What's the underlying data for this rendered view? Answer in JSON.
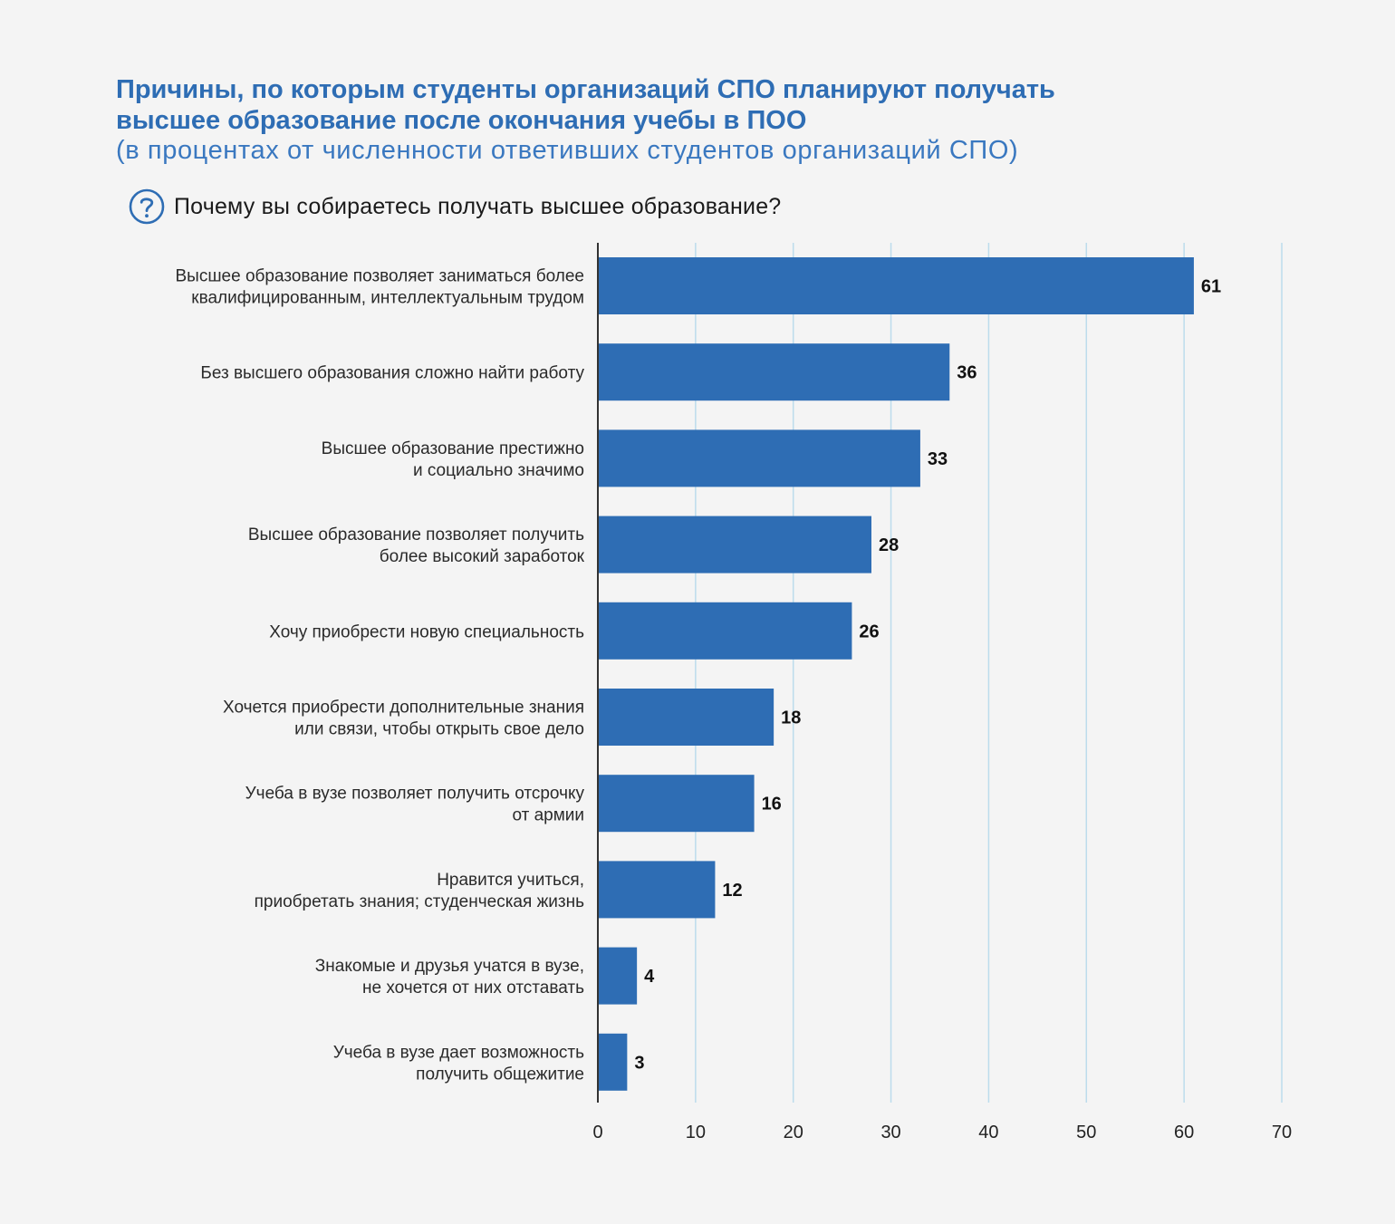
{
  "title_line1": "Причины, по которым студенты организаций СПО планируют получать",
  "title_line2": "высшее образование после окончания учебы в ПОО",
  "subtitle": "(в процентах от численности ответивших студентов организаций СПО)",
  "question": {
    "icon": "question-circle-icon",
    "text": "Почему вы собираетесь получать высшее образование?"
  },
  "colors": {
    "bar": "#2e6db4",
    "title": "#2e6db4",
    "grid": "#bcdcec",
    "axis": "#333333"
  },
  "chart_data": {
    "type": "bar",
    "orientation": "horizontal",
    "categories": [
      [
        "Высшее образование позволяет заниматься более",
        "квалифицированным, интеллектуальным трудом"
      ],
      [
        "Без высшего образования сложно найти работу"
      ],
      [
        "Высшее образование престижно",
        "и социально значимо"
      ],
      [
        "Высшее образование позволяет получить",
        "более высокий заработок"
      ],
      [
        "Хочу приобрести новую специальность"
      ],
      [
        "Хочется приобрести дополнительные знания",
        "или связи, чтобы открыть свое дело"
      ],
      [
        "Учеба в вузе позволяет получить отсрочку",
        "от армии"
      ],
      [
        "Нравится учиться,",
        "приобретать знания; студенческая жизнь"
      ],
      [
        "Знакомые и друзья учатся в вузе,",
        "не хочется от них отставать"
      ],
      [
        "Учеба в вузе дает возможность",
        "получить общежитие"
      ]
    ],
    "values": [
      61,
      36,
      33,
      28,
      26,
      18,
      16,
      12,
      4,
      3
    ],
    "xlim": [
      0,
      70
    ],
    "xticks": [
      0,
      10,
      20,
      30,
      40,
      50,
      60,
      70
    ],
    "grid": true,
    "data_labels": true
  }
}
